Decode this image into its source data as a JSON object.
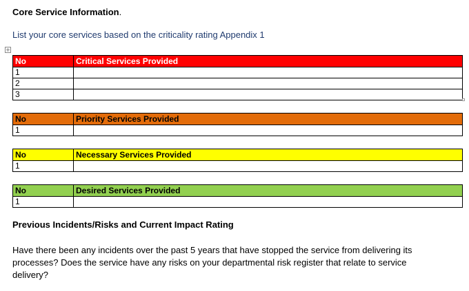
{
  "heading": {
    "bold_text": "Core Service Information",
    "trailing": "."
  },
  "instruction": "List your core services based on the criticality rating Appendix 1",
  "colors": {
    "critical": "#ff0000",
    "priority": "#e36c0a",
    "necessary": "#ffff00",
    "desired": "#92d050",
    "instruction_text": "#1f3a6e"
  },
  "tables": {
    "critical": {
      "col_no": "No",
      "col_title": "Critical Services Provided",
      "rows": [
        "1",
        "2",
        "3"
      ]
    },
    "priority": {
      "col_no": "No",
      "col_title": "Priority Services Provided",
      "rows": [
        "1"
      ]
    },
    "necessary": {
      "col_no": "No",
      "col_title": "Necessary Services Provided",
      "rows": [
        "1"
      ]
    },
    "desired": {
      "col_no": "No",
      "col_title": "Desired Services Provided",
      "rows": [
        "1"
      ]
    }
  },
  "section2": {
    "heading": "Previous Incidents/Risks and Current Impact Rating",
    "paragraph_lines": [
      "Have there been any incidents over the past 5 years that have stopped the service from delivering its",
      "processes?  Does the service have any risks on your departmental risk register that relate to service",
      "delivery?"
    ]
  }
}
